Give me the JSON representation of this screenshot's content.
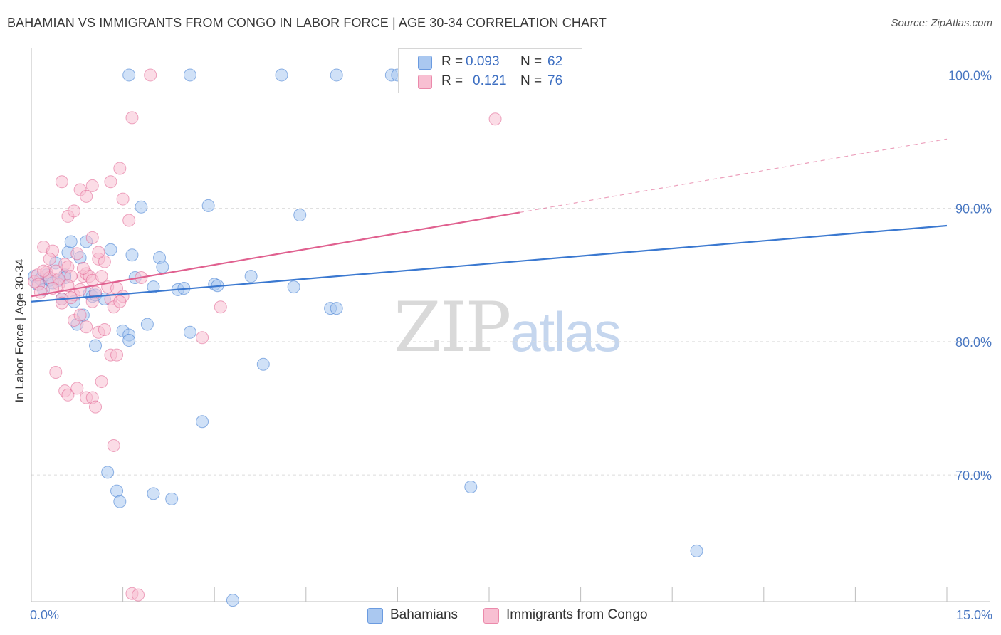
{
  "title": "BAHAMIAN VS IMMIGRANTS FROM CONGO IN LABOR FORCE | AGE 30-34 CORRELATION CHART",
  "source": "Source: ZipAtlas.com",
  "watermark": {
    "zip": "ZIP",
    "atlas": "atlas"
  },
  "legend": {
    "r_label": "R =",
    "n_label": "N =",
    "rows": [
      {
        "name": "Bahamians",
        "r": "0.093",
        "n": "62",
        "fill": "#aac8f0",
        "stroke": "#6b9be0"
      },
      {
        "name": "Immigrants from Congo",
        "r": "0.121",
        "n": "76",
        "fill": "#f8bfd2",
        "stroke": "#eb8aab"
      }
    ]
  },
  "chart_data": {
    "type": "scatter",
    "title": "BAHAMIAN VS IMMIGRANTS FROM CONGO IN LABOR FORCE | AGE 30-34 CORRELATION CHART",
    "xlabel": "",
    "ylabel": "In Labor Force | Age 30-34",
    "xlim": [
      0,
      15
    ],
    "ylim": [
      60.5,
      102
    ],
    "x_tick_labels": [
      "0.0%",
      "15.0%"
    ],
    "y_ticks": [
      70,
      80,
      90,
      100
    ],
    "y_tick_labels": [
      "70.0%",
      "80.0%",
      "90.0%",
      "100.0%"
    ],
    "series": [
      {
        "name": "Bahamians",
        "color": "#3a78d0",
        "fill": "#aac8f0",
        "trend": {
          "x0": 0,
          "y0": 83.0,
          "x1": 15,
          "y1": 88.7,
          "dashed_from": null
        },
        "points": [
          [
            0.05,
            84.9
          ],
          [
            0.1,
            84.3
          ],
          [
            0.15,
            84.7
          ],
          [
            0.2,
            83.9
          ],
          [
            0.25,
            85.0
          ],
          [
            0.3,
            84.6
          ],
          [
            0.4,
            85.9
          ],
          [
            0.45,
            84.6
          ],
          [
            0.5,
            83.2
          ],
          [
            0.55,
            85.0
          ],
          [
            0.6,
            86.7
          ],
          [
            0.65,
            87.5
          ],
          [
            0.7,
            83.0
          ],
          [
            0.75,
            81.3
          ],
          [
            0.8,
            86.3
          ],
          [
            0.85,
            82.0
          ],
          [
            0.9,
            87.5
          ],
          [
            0.95,
            83.6
          ],
          [
            1.0,
            83.4
          ],
          [
            1.05,
            79.7
          ],
          [
            1.2,
            83.2
          ],
          [
            1.3,
            86.9
          ],
          [
            1.5,
            80.8
          ],
          [
            1.6,
            80.5
          ],
          [
            1.6,
            80.1
          ],
          [
            1.65,
            86.5
          ],
          [
            1.7,
            84.8
          ],
          [
            1.8,
            90.1
          ],
          [
            1.9,
            81.3
          ],
          [
            2.0,
            84.1
          ],
          [
            2.1,
            86.3
          ],
          [
            2.15,
            85.6
          ],
          [
            2.4,
            83.9
          ],
          [
            2.5,
            84.0
          ],
          [
            2.6,
            80.7
          ],
          [
            2.8,
            74.0
          ],
          [
            2.9,
            90.2
          ],
          [
            3.0,
            84.3
          ],
          [
            3.05,
            84.2
          ],
          [
            3.6,
            84.9
          ],
          [
            3.8,
            78.3
          ],
          [
            4.3,
            84.1
          ],
          [
            4.4,
            89.5
          ],
          [
            4.9,
            82.5
          ],
          [
            5.0,
            82.5
          ],
          [
            1.25,
            70.2
          ],
          [
            1.4,
            68.8
          ],
          [
            1.45,
            68.0
          ],
          [
            2.0,
            68.6
          ],
          [
            2.3,
            68.2
          ],
          [
            7.2,
            69.1
          ],
          [
            10.9,
            64.3
          ],
          [
            3.3,
            60.6
          ],
          [
            1.6,
            100.0
          ],
          [
            2.6,
            100.0
          ],
          [
            4.1,
            100.0
          ],
          [
            5.0,
            100.0
          ],
          [
            5.9,
            100.0
          ],
          [
            6.0,
            100.0
          ],
          [
            1.05,
            83.5
          ],
          [
            0.35,
            84.4
          ],
          [
            0.55,
            84.8
          ]
        ]
      },
      {
        "name": "Immigrants from Congo",
        "color": "#e0608f",
        "fill": "#f8bfd2",
        "trend": {
          "x0": 0,
          "y0": 83.4,
          "x1": 15,
          "y1": 95.2,
          "dashed_from": 8.0
        },
        "points": [
          [
            0.05,
            84.5
          ],
          [
            0.1,
            85.0
          ],
          [
            0.12,
            84.3
          ],
          [
            0.15,
            83.7
          ],
          [
            0.2,
            87.1
          ],
          [
            0.25,
            85.2
          ],
          [
            0.3,
            84.8
          ],
          [
            0.35,
            86.8
          ],
          [
            0.4,
            85.3
          ],
          [
            0.45,
            84.3
          ],
          [
            0.5,
            83.2
          ],
          [
            0.55,
            85.8
          ],
          [
            0.6,
            85.6
          ],
          [
            0.65,
            84.9
          ],
          [
            0.7,
            83.5
          ],
          [
            0.75,
            86.6
          ],
          [
            0.8,
            83.9
          ],
          [
            0.85,
            84.9
          ],
          [
            0.9,
            85.1
          ],
          [
            0.95,
            84.9
          ],
          [
            1.0,
            84.6
          ],
          [
            1.05,
            83.7
          ],
          [
            1.1,
            86.2
          ],
          [
            1.15,
            84.9
          ],
          [
            1.2,
            86.0
          ],
          [
            1.25,
            84.1
          ],
          [
            1.3,
            83.2
          ],
          [
            1.35,
            82.6
          ],
          [
            1.4,
            84.0
          ],
          [
            1.5,
            83.4
          ],
          [
            0.5,
            92.0
          ],
          [
            0.8,
            91.4
          ],
          [
            0.9,
            90.9
          ],
          [
            1.0,
            91.7
          ],
          [
            1.3,
            92.0
          ],
          [
            1.45,
            93.0
          ],
          [
            1.5,
            90.7
          ],
          [
            1.6,
            89.1
          ],
          [
            0.6,
            89.4
          ],
          [
            0.7,
            89.8
          ],
          [
            1.0,
            87.8
          ],
          [
            1.1,
            86.7
          ],
          [
            0.5,
            82.9
          ],
          [
            0.7,
            81.6
          ],
          [
            0.8,
            82.0
          ],
          [
            0.9,
            81.1
          ],
          [
            1.1,
            80.7
          ],
          [
            1.2,
            80.9
          ],
          [
            1.3,
            79.0
          ],
          [
            1.4,
            79.0
          ],
          [
            0.4,
            77.7
          ],
          [
            0.55,
            76.3
          ],
          [
            0.6,
            76.0
          ],
          [
            0.75,
            76.5
          ],
          [
            0.9,
            75.8
          ],
          [
            1.0,
            75.8
          ],
          [
            1.05,
            75.1
          ],
          [
            1.15,
            77.0
          ],
          [
            1.35,
            72.2
          ],
          [
            1.65,
            61.1
          ],
          [
            1.75,
            61.0
          ],
          [
            1.95,
            100.0
          ],
          [
            1.65,
            96.8
          ],
          [
            7.6,
            96.7
          ],
          [
            2.8,
            80.3
          ],
          [
            3.1,
            82.6
          ],
          [
            1.8,
            84.8
          ],
          [
            1.45,
            83.0
          ],
          [
            1.0,
            83.0
          ],
          [
            0.3,
            86.2
          ],
          [
            0.45,
            84.7
          ],
          [
            0.6,
            84.2
          ],
          [
            0.2,
            85.3
          ],
          [
            0.85,
            85.5
          ],
          [
            0.65,
            83.3
          ],
          [
            0.35,
            84.0
          ]
        ]
      }
    ]
  }
}
